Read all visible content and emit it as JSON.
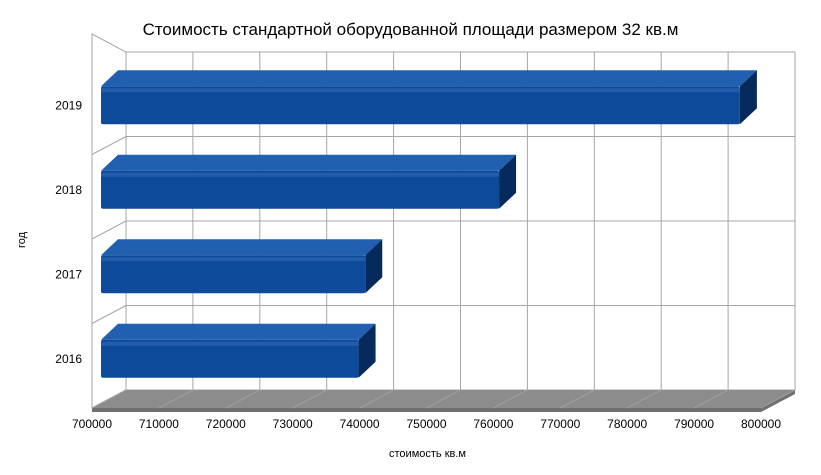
{
  "chart_data": {
    "type": "bar",
    "orientation": "horizontal",
    "title": "Стоимость стандартной оборудованной площади размером 32 кв.м",
    "xlabel": "стоимость кв.м",
    "ylabel": "год",
    "categories": [
      "2016",
      "2017",
      "2018",
      "2019"
    ],
    "values": [
      738500,
      739500,
      759500,
      795500
    ],
    "xlim": [
      700000,
      800000
    ],
    "xticks": [
      "700000",
      "710000",
      "720000",
      "730000",
      "740000",
      "750000",
      "760000",
      "770000",
      "780000",
      "790000",
      "800000"
    ],
    "grid": true,
    "legend": "none",
    "style": "3d",
    "colors": {
      "bar": "#0d4a9a",
      "bar_top": "#2160b0",
      "bar_side": "#072a5c",
      "grid": "#a6a6a6",
      "floor": "#8c8c8c"
    }
  }
}
